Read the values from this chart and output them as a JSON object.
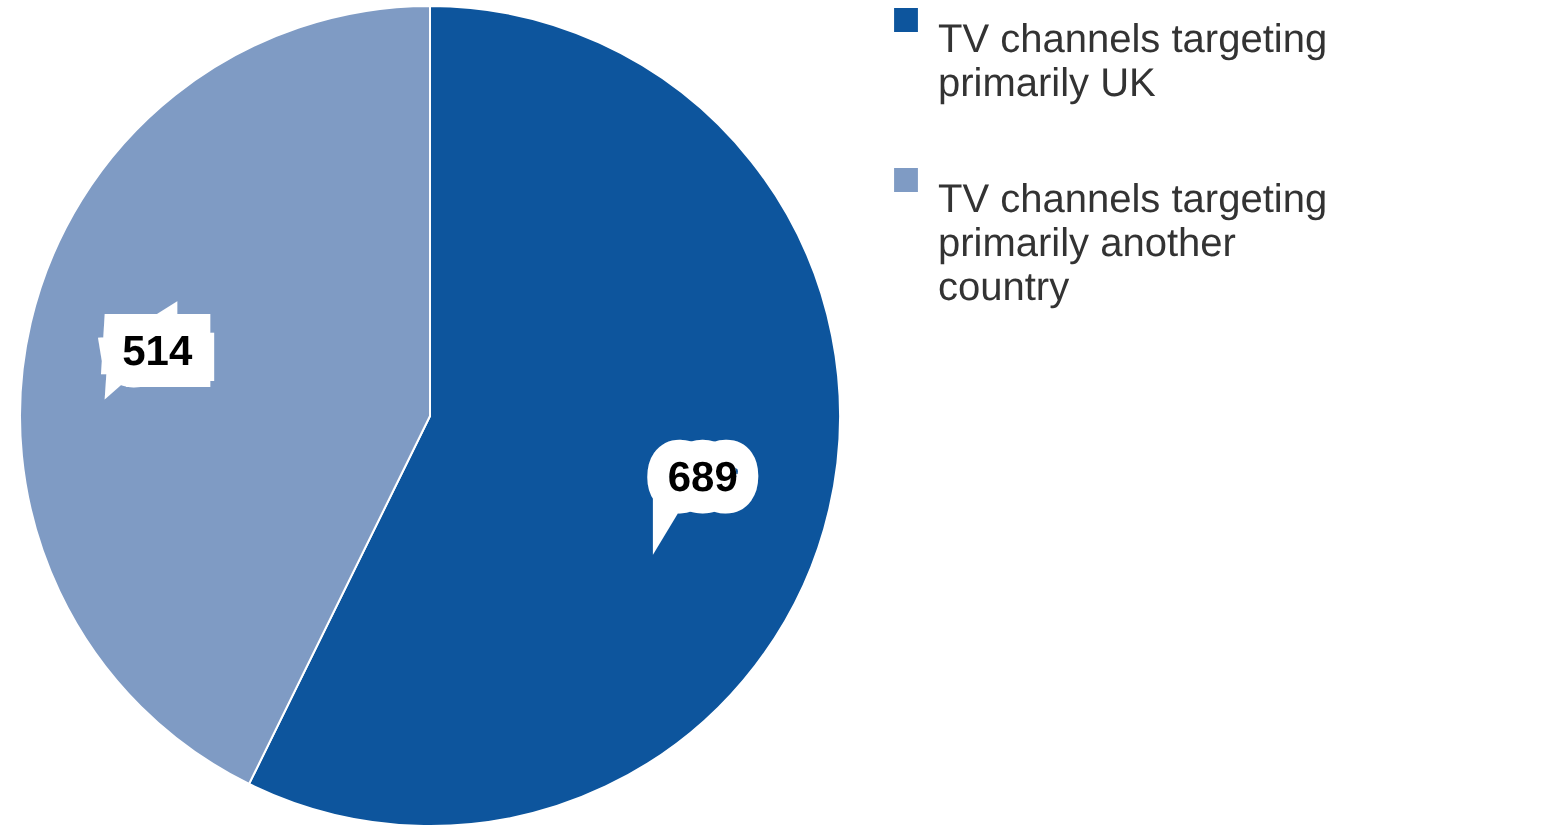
{
  "chart_data": {
    "type": "pie",
    "categories": [
      "TV channels targeting primarily UK",
      "TV channels targeting primarily another country"
    ],
    "values": [
      689,
      514
    ],
    "colors": [
      "#0d559d",
      "#7f9bc4"
    ],
    "data_labels": true,
    "legend": "right"
  }
}
